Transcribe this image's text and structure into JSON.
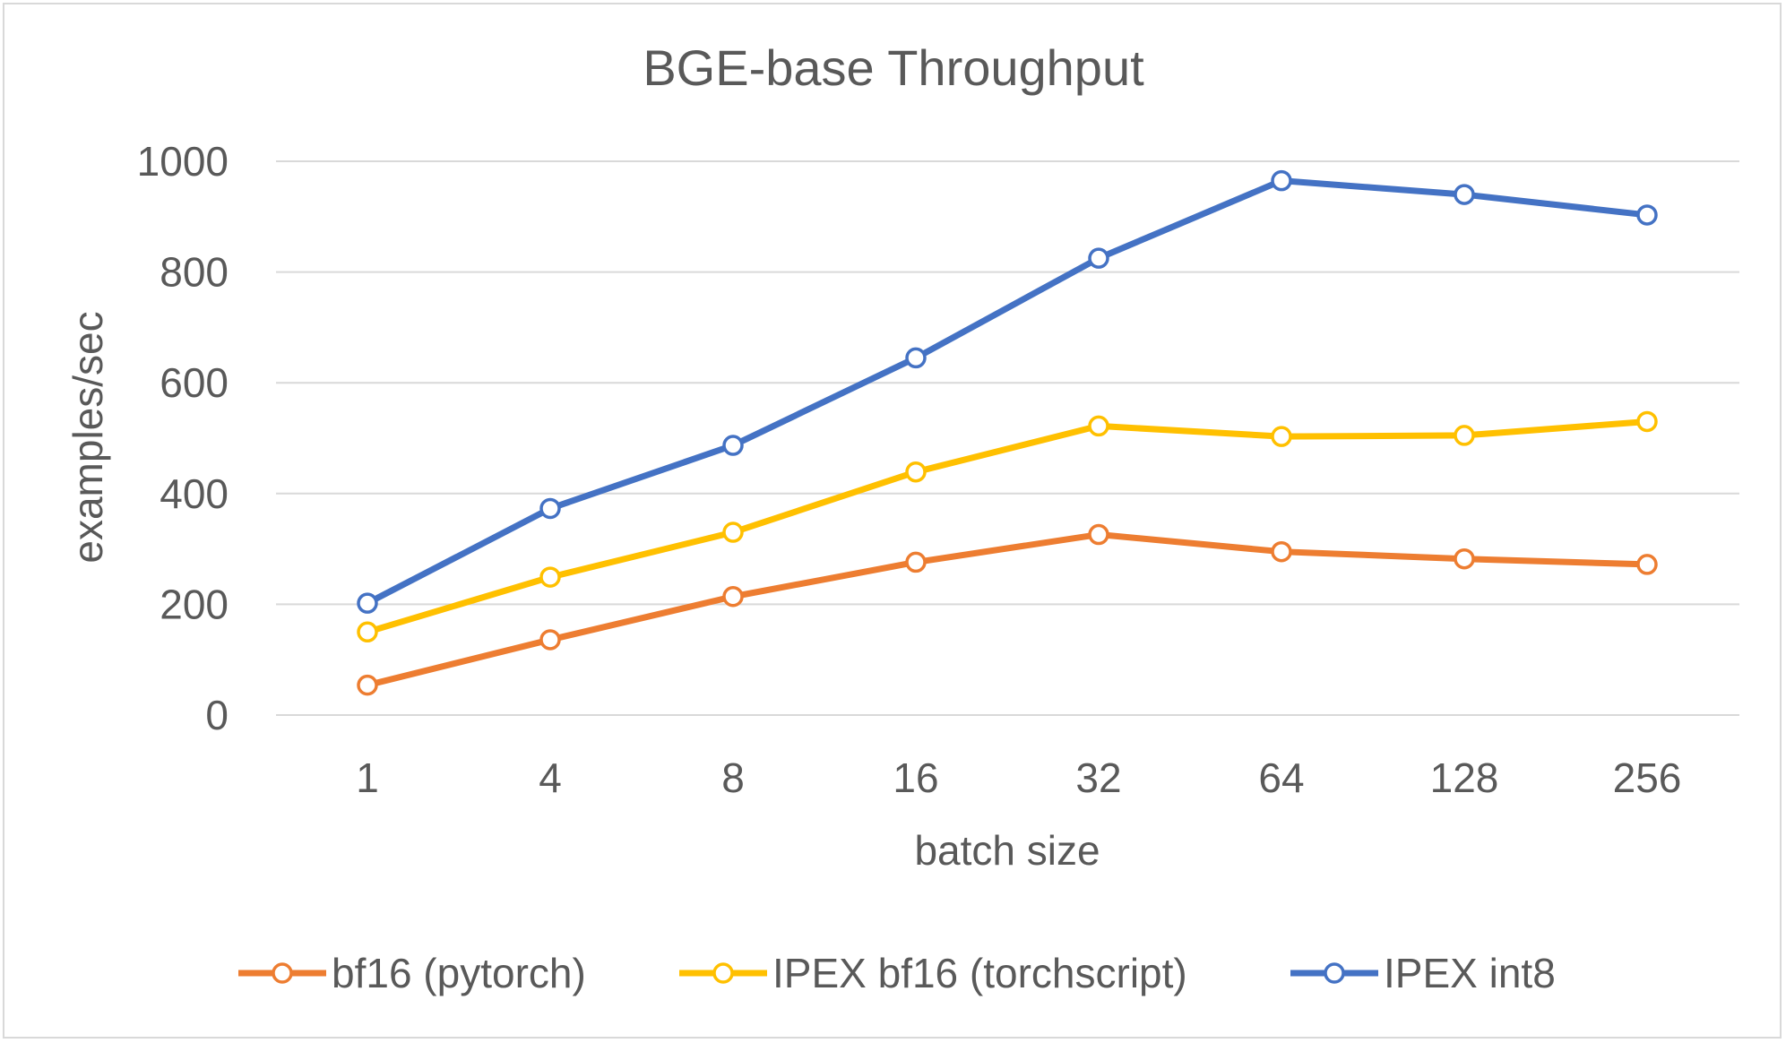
{
  "chart_data": {
    "type": "line",
    "title": "BGE-base Throughput",
    "xlabel": "batch size",
    "ylabel": "examples/sec",
    "categories": [
      "1",
      "4",
      "8",
      "16",
      "32",
      "64",
      "128",
      "256"
    ],
    "ylim": [
      0,
      1000
    ],
    "yticks": [
      0,
      200,
      400,
      600,
      800,
      1000
    ],
    "ytick_labels": [
      "0",
      "200",
      "400",
      "600",
      "800",
      "1000"
    ],
    "grid": true,
    "legend": "bottom",
    "series": [
      {
        "name": "bf16 (pytorch)",
        "color": "#ED7D31",
        "values": [
          54,
          136,
          214,
          276,
          326,
          295,
          282,
          272
        ]
      },
      {
        "name": "IPEX bf16 (torchscript)",
        "color": "#FFC000",
        "values": [
          150,
          249,
          330,
          439,
          522,
          503,
          505,
          530
        ]
      },
      {
        "name": "IPEX int8",
        "color": "#4472C4",
        "values": [
          202,
          373,
          487,
          645,
          825,
          965,
          940,
          903
        ]
      }
    ]
  }
}
